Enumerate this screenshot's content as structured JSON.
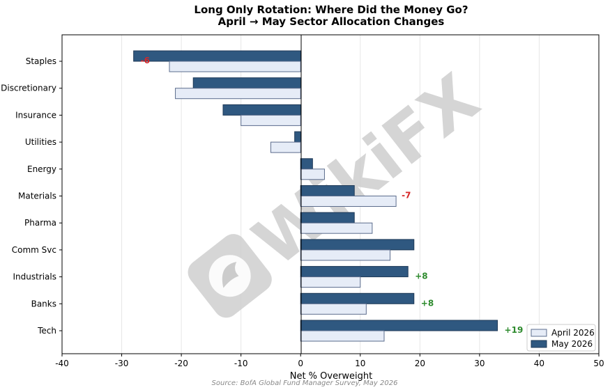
{
  "chart_data": {
    "type": "bar",
    "orientation": "horizontal",
    "title": "Long Only Rotation: Where Did the Money Go?",
    "subtitle": "April → May Sector Allocation Changes",
    "xlabel": "Net % Overweight",
    "ylabel": "",
    "xlim": [
      -40,
      50
    ],
    "xticks": [
      -40,
      -30,
      -20,
      -10,
      0,
      10,
      20,
      30,
      40,
      50
    ],
    "categories": [
      "Staples",
      "Discretionary",
      "Insurance",
      "Utilities",
      "Energy",
      "Materials",
      "Pharma",
      "Comm Svc",
      "Industrials",
      "Banks",
      "Tech"
    ],
    "series": [
      {
        "name": "April 2026",
        "color": "#e6ecf7",
        "edge": "#5b6c8c",
        "values": [
          -22,
          -21,
          -10,
          -5,
          4,
          16,
          12,
          15,
          10,
          11,
          14
        ]
      },
      {
        "name": "May 2026",
        "color": "#2f5880",
        "edge": "#1f3a57",
        "values": [
          -28,
          -18,
          -13,
          -1,
          2,
          9,
          9,
          19,
          18,
          19,
          33
        ]
      }
    ],
    "annotations": [
      {
        "category": "Staples",
        "text": "-6",
        "color": "#d62728"
      },
      {
        "category": "Materials",
        "text": "-7",
        "color": "#d62728"
      },
      {
        "category": "Industrials",
        "text": "+8",
        "color": "#2e8b2e"
      },
      {
        "category": "Banks",
        "text": "+8",
        "color": "#2e8b2e"
      },
      {
        "category": "Tech",
        "text": "+19",
        "color": "#2e8b2e"
      }
    ],
    "grid": true,
    "legend_position": "bottom-right",
    "source": "Source: BofA Global Fund Manager Survey, May 2026"
  },
  "watermark": {
    "text": "WikiFX",
    "icon": "wikifx-logo-icon"
  }
}
